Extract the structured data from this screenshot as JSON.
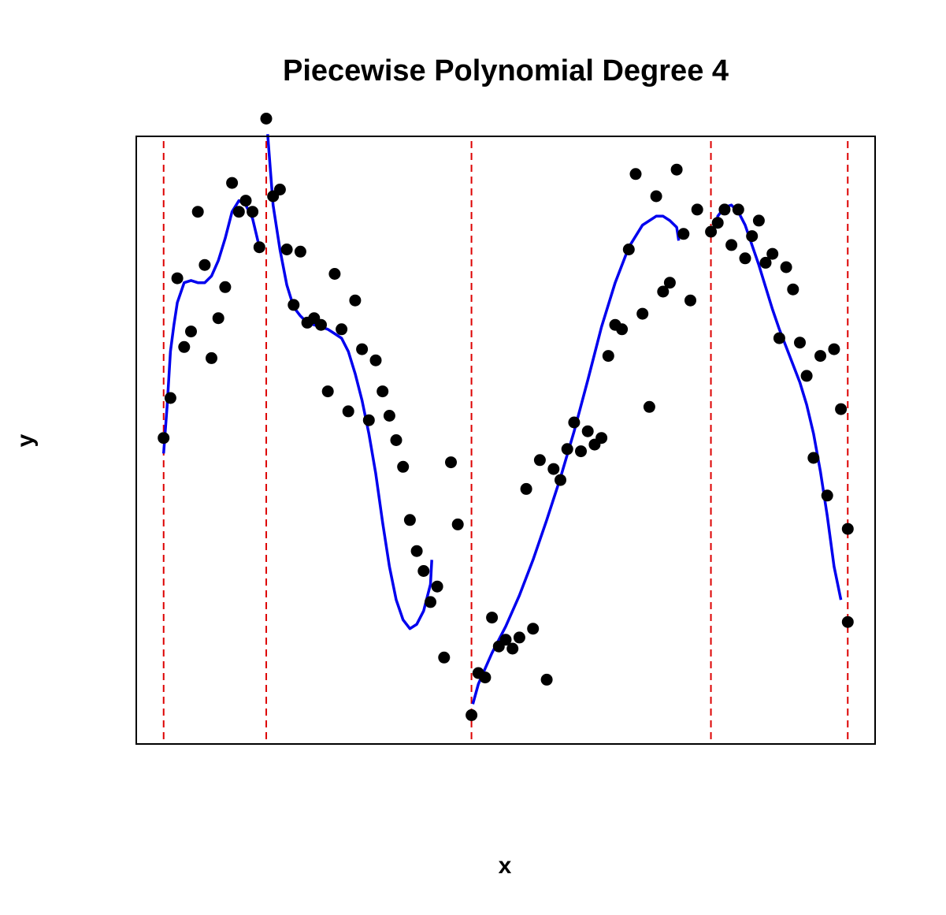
{
  "chart_data": {
    "type": "scatter",
    "title": "Piecewise Polynomial Degree 4",
    "xlabel": "x",
    "ylabel": "y",
    "xlim": [
      -0.04,
      1.04
    ],
    "ylim": [
      -1.27,
      1.47
    ],
    "axes_ticks": false,
    "point_color": "#000000",
    "fit_color": "#0000ee",
    "knot_color": "#dd0000",
    "knots": [
      0,
      0.15,
      0.45,
      0.8,
      1.0
    ],
    "points": [
      [
        0.0,
        0.11
      ],
      [
        0.01,
        0.29
      ],
      [
        0.02,
        0.83
      ],
      [
        0.03,
        0.52
      ],
      [
        0.04,
        0.59
      ],
      [
        0.05,
        1.13
      ],
      [
        0.06,
        0.89
      ],
      [
        0.07,
        0.47
      ],
      [
        0.08,
        0.65
      ],
      [
        0.09,
        0.79
      ],
      [
        0.1,
        1.26
      ],
      [
        0.11,
        1.13
      ],
      [
        0.12,
        1.18
      ],
      [
        0.13,
        1.13
      ],
      [
        0.14,
        0.97
      ],
      [
        0.15,
        1.55
      ],
      [
        0.16,
        1.2
      ],
      [
        0.17,
        1.23
      ],
      [
        0.18,
        0.96
      ],
      [
        0.19,
        0.71
      ],
      [
        0.2,
        0.95
      ],
      [
        0.21,
        0.63
      ],
      [
        0.22,
        0.65
      ],
      [
        0.23,
        0.62
      ],
      [
        0.24,
        0.32
      ],
      [
        0.25,
        0.85
      ],
      [
        0.26,
        0.6
      ],
      [
        0.27,
        0.23
      ],
      [
        0.28,
        0.73
      ],
      [
        0.29,
        0.51
      ],
      [
        0.3,
        0.19
      ],
      [
        0.31,
        0.46
      ],
      [
        0.32,
        0.32
      ],
      [
        0.33,
        0.21
      ],
      [
        0.34,
        0.1
      ],
      [
        0.35,
        -0.02
      ],
      [
        0.36,
        -0.26
      ],
      [
        0.37,
        -0.4
      ],
      [
        0.38,
        -0.49
      ],
      [
        0.39,
        -0.63
      ],
      [
        0.4,
        -0.56
      ],
      [
        0.41,
        -0.88
      ],
      [
        0.42,
        0.0
      ],
      [
        0.43,
        -0.28
      ],
      [
        0.45,
        -1.14
      ],
      [
        0.46,
        -0.95
      ],
      [
        0.47,
        -0.97
      ],
      [
        0.48,
        -0.7
      ],
      [
        0.49,
        -0.83
      ],
      [
        0.5,
        -0.8
      ],
      [
        0.51,
        -0.84
      ],
      [
        0.52,
        -0.79
      ],
      [
        0.53,
        -0.12
      ],
      [
        0.54,
        -0.75
      ],
      [
        0.55,
        0.01
      ],
      [
        0.56,
        -0.98
      ],
      [
        0.57,
        -0.03
      ],
      [
        0.58,
        -0.08
      ],
      [
        0.59,
        0.06
      ],
      [
        0.6,
        0.18
      ],
      [
        0.61,
        0.05
      ],
      [
        0.62,
        0.14
      ],
      [
        0.63,
        0.08
      ],
      [
        0.64,
        0.11
      ],
      [
        0.65,
        0.48
      ],
      [
        0.66,
        0.62
      ],
      [
        0.67,
        0.6
      ],
      [
        0.68,
        0.96
      ],
      [
        0.69,
        1.3
      ],
      [
        0.7,
        0.67
      ],
      [
        0.71,
        0.25
      ],
      [
        0.72,
        1.2
      ],
      [
        0.73,
        0.77
      ],
      [
        0.74,
        0.81
      ],
      [
        0.75,
        1.32
      ],
      [
        0.76,
        1.03
      ],
      [
        0.77,
        0.73
      ],
      [
        0.78,
        1.14
      ],
      [
        0.8,
        1.04
      ],
      [
        0.81,
        1.08
      ],
      [
        0.82,
        1.14
      ],
      [
        0.83,
        0.98
      ],
      [
        0.84,
        1.14
      ],
      [
        0.85,
        0.92
      ],
      [
        0.86,
        1.02
      ],
      [
        0.87,
        1.09
      ],
      [
        0.88,
        0.9
      ],
      [
        0.89,
        0.94
      ],
      [
        0.9,
        0.56
      ],
      [
        0.91,
        0.88
      ],
      [
        0.92,
        0.78
      ],
      [
        0.93,
        0.54
      ],
      [
        0.94,
        0.39
      ],
      [
        0.95,
        0.02
      ],
      [
        0.96,
        0.48
      ],
      [
        0.97,
        -0.15
      ],
      [
        0.98,
        0.51
      ],
      [
        0.99,
        0.24
      ],
      [
        1.0,
        -0.3
      ],
      [
        1.0,
        -0.72
      ]
    ],
    "fit_segments": [
      [
        [
          0.0,
          0.04
        ],
        [
          0.005,
          0.25
        ],
        [
          0.01,
          0.5
        ],
        [
          0.015,
          0.62
        ],
        [
          0.02,
          0.72
        ],
        [
          0.03,
          0.81
        ],
        [
          0.04,
          0.82
        ],
        [
          0.05,
          0.81
        ],
        [
          0.06,
          0.81
        ],
        [
          0.07,
          0.84
        ],
        [
          0.08,
          0.91
        ],
        [
          0.09,
          1.01
        ],
        [
          0.1,
          1.13
        ],
        [
          0.11,
          1.18
        ],
        [
          0.12,
          1.16
        ],
        [
          0.13,
          1.1
        ],
        [
          0.14,
          0.97
        ],
        [
          0.143,
          0.95
        ]
      ],
      [
        [
          0.152,
          1.48
        ],
        [
          0.16,
          1.16
        ],
        [
          0.17,
          0.96
        ],
        [
          0.18,
          0.8
        ],
        [
          0.19,
          0.7
        ],
        [
          0.2,
          0.66
        ],
        [
          0.21,
          0.63
        ],
        [
          0.22,
          0.62
        ],
        [
          0.23,
          0.61
        ],
        [
          0.24,
          0.6
        ],
        [
          0.25,
          0.58
        ],
        [
          0.26,
          0.56
        ],
        [
          0.27,
          0.5
        ],
        [
          0.28,
          0.4
        ],
        [
          0.29,
          0.28
        ],
        [
          0.3,
          0.13
        ],
        [
          0.31,
          -0.05
        ],
        [
          0.32,
          -0.27
        ],
        [
          0.33,
          -0.47
        ],
        [
          0.34,
          -0.62
        ],
        [
          0.35,
          -0.71
        ],
        [
          0.36,
          -0.75
        ],
        [
          0.37,
          -0.73
        ],
        [
          0.38,
          -0.67
        ],
        [
          0.39,
          -0.55
        ],
        [
          0.392,
          -0.44
        ]
      ],
      [
        [
          0.452,
          -1.09
        ],
        [
          0.46,
          -1.0
        ],
        [
          0.47,
          -0.93
        ],
        [
          0.48,
          -0.86
        ],
        [
          0.5,
          -0.74
        ],
        [
          0.52,
          -0.6
        ],
        [
          0.54,
          -0.44
        ],
        [
          0.56,
          -0.26
        ],
        [
          0.58,
          -0.07
        ],
        [
          0.6,
          0.14
        ],
        [
          0.62,
          0.37
        ],
        [
          0.64,
          0.61
        ],
        [
          0.66,
          0.81
        ],
        [
          0.68,
          0.97
        ],
        [
          0.7,
          1.07
        ],
        [
          0.72,
          1.11
        ],
        [
          0.73,
          1.11
        ],
        [
          0.74,
          1.09
        ],
        [
          0.75,
          1.06
        ],
        [
          0.753,
          1.0
        ]
      ],
      [
        [
          0.808,
          1.06
        ],
        [
          0.81,
          1.11
        ],
        [
          0.82,
          1.15
        ],
        [
          0.83,
          1.16
        ],
        [
          0.84,
          1.13
        ],
        [
          0.85,
          1.07
        ],
        [
          0.86,
          0.98
        ],
        [
          0.87,
          0.89
        ],
        [
          0.88,
          0.79
        ],
        [
          0.89,
          0.69
        ],
        [
          0.9,
          0.6
        ],
        [
          0.91,
          0.52
        ],
        [
          0.92,
          0.44
        ],
        [
          0.93,
          0.36
        ],
        [
          0.94,
          0.26
        ],
        [
          0.95,
          0.13
        ],
        [
          0.96,
          -0.04
        ],
        [
          0.97,
          -0.24
        ],
        [
          0.98,
          -0.47
        ],
        [
          0.99,
          -0.62
        ]
      ]
    ]
  }
}
